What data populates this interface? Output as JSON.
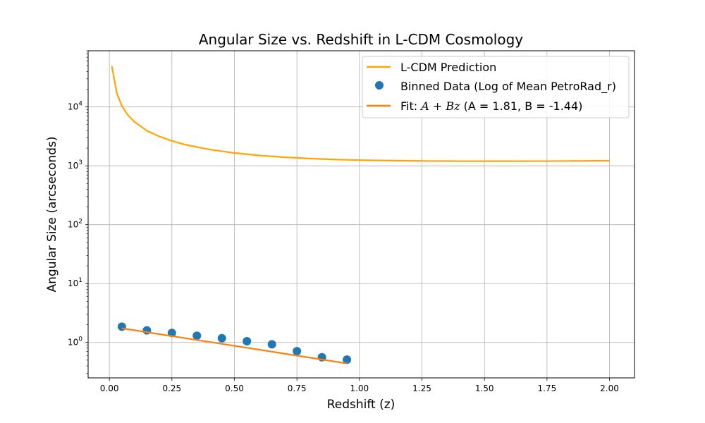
{
  "chart_data": {
    "type": "line",
    "title": "Angular Size vs. Redshift in L-CDM Cosmology",
    "xlabel": "Redshift (z)",
    "ylabel": "Angular Size (arcseconds)",
    "xlim": [
      -0.085,
      2.1
    ],
    "ylim": [
      0.25,
      90000
    ],
    "yscale": "log",
    "grid": true,
    "legend_position": "top-right",
    "x_ticks": [
      "0.00",
      "0.25",
      "0.50",
      "0.75",
      "1.00",
      "1.25",
      "1.50",
      "1.75",
      "2.00"
    ],
    "y_ticks": [
      {
        "value": 1,
        "base": "10",
        "exp": "0"
      },
      {
        "value": 10,
        "base": "10",
        "exp": "1"
      },
      {
        "value": 100,
        "base": "10",
        "exp": "2"
      },
      {
        "value": 1000,
        "base": "10",
        "exp": "3"
      },
      {
        "value": 10000,
        "base": "10",
        "exp": "4"
      }
    ],
    "series": [
      {
        "name": "L-CDM Prediction",
        "kind": "line",
        "color": "#ffa500",
        "x": [
          0.01,
          0.03,
          0.05,
          0.075,
          0.1,
          0.15,
          0.2,
          0.25,
          0.3,
          0.4,
          0.5,
          0.6,
          0.7,
          0.8,
          0.9,
          1.0,
          1.1,
          1.2,
          1.3,
          1.4,
          1.5,
          1.6,
          1.7,
          1.8,
          1.9,
          2.0
        ],
        "y": [
          49000,
          17000,
          10400,
          7200,
          5600,
          3950,
          3150,
          2650,
          2300,
          1900,
          1650,
          1500,
          1400,
          1330,
          1280,
          1250,
          1230,
          1215,
          1205,
          1200,
          1198,
          1198,
          1200,
          1205,
          1210,
          1220
        ]
      },
      {
        "name": "Binned Data (Log of Mean PetroRad_r)",
        "kind": "scatter",
        "color": "#1f77b4",
        "x": [
          0.05,
          0.15,
          0.25,
          0.35,
          0.45,
          0.55,
          0.65,
          0.75,
          0.85,
          0.95
        ],
        "y": [
          1.85,
          1.6,
          1.45,
          1.3,
          1.18,
          1.05,
          0.93,
          0.71,
          0.56,
          0.51
        ]
      },
      {
        "name_prefix": "Fit: ",
        "name_math": "A + Bz",
        "name_suffix": " (A = 1.81, B = -1.44)",
        "kind": "line",
        "color": "#ff7f0e",
        "x": [
          0.05,
          0.95
        ],
        "y": [
          1.74,
          0.44
        ]
      }
    ]
  }
}
